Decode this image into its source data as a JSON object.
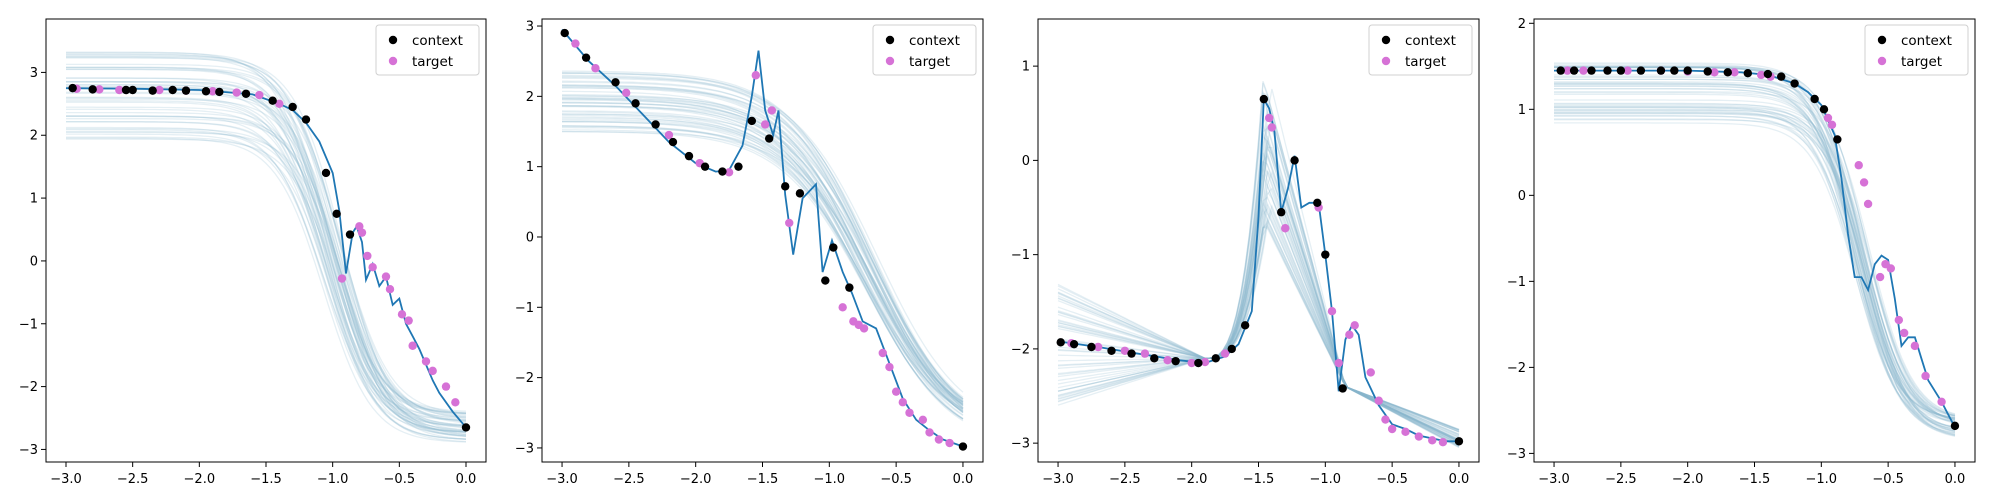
{
  "figure": {
    "legend_labels": {
      "context": "context",
      "target": "target"
    },
    "colors": {
      "context": "#000000",
      "target": "#d672d6",
      "mean": "#1f77b4",
      "samples": "#8ab8cc"
    }
  },
  "chart_data": [
    {
      "type": "scatter",
      "title": "",
      "xlabel": "",
      "ylabel": "",
      "xlim": [
        -3.15,
        0.15
      ],
      "ylim": [
        -3.2,
        3.85
      ],
      "xticks": [
        -3.0,
        -2.5,
        -2.0,
        -1.5,
        -1.0,
        -0.5,
        0.0
      ],
      "xtick_labels": [
        "−3.0",
        "−2.5",
        "−2.0",
        "−1.5",
        "−1.0",
        "−0.5",
        "0.0"
      ],
      "yticks": [
        -3,
        -2,
        -1,
        0,
        1,
        2,
        3
      ],
      "ytick_labels": [
        "−3",
        "−2",
        "−1",
        "0",
        "1",
        "2",
        "3"
      ],
      "legend": "top-right",
      "grid": false,
      "mean_line": {
        "x": [
          -3.0,
          -2.5,
          -2.0,
          -1.6,
          -1.4,
          -1.3,
          -1.2,
          -1.1,
          -1.0,
          -0.95,
          -0.9,
          -0.85,
          -0.82,
          -0.78,
          -0.75,
          -0.7,
          -0.65,
          -0.6,
          -0.55,
          -0.5,
          -0.45,
          -0.4,
          -0.35,
          -0.3,
          -0.25,
          -0.2,
          -0.1,
          0.0
        ],
        "y": [
          2.75,
          2.74,
          2.72,
          2.65,
          2.5,
          2.4,
          2.2,
          1.9,
          1.4,
          0.8,
          -0.2,
          0.45,
          0.55,
          0.3,
          -0.3,
          -0.05,
          -0.4,
          -0.25,
          -0.7,
          -0.6,
          -1.0,
          -1.2,
          -1.4,
          -1.65,
          -1.9,
          -2.1,
          -2.4,
          -2.65
        ]
      },
      "samples": {
        "count": 50,
        "plateau_range": [
          1.9,
          3.4
        ],
        "mid": -1.0,
        "width": 0.18,
        "end_range": [
          -2.9,
          -2.4
        ]
      },
      "context": {
        "x": [
          -2.95,
          -2.8,
          -2.55,
          -2.5,
          -2.35,
          -2.2,
          -2.1,
          -1.95,
          -1.85,
          -1.65,
          -1.45,
          -1.3,
          -1.2,
          -1.05,
          -0.97,
          -0.87,
          0.0
        ],
        "y": [
          2.75,
          2.73,
          2.72,
          2.72,
          2.71,
          2.72,
          2.71,
          2.7,
          2.69,
          2.66,
          2.55,
          2.45,
          2.25,
          1.4,
          0.75,
          0.42,
          -2.65
        ]
      },
      "target": {
        "x": [
          -2.92,
          -2.75,
          -2.6,
          -2.3,
          -2.1,
          -1.9,
          -1.72,
          -1.55,
          -1.4,
          -0.93,
          -0.8,
          -0.78,
          -0.74,
          -0.7,
          -0.6,
          -0.57,
          -0.48,
          -0.43,
          -0.4,
          -0.3,
          -0.25,
          -0.15,
          -0.08
        ],
        "y": [
          2.74,
          2.73,
          2.72,
          2.72,
          2.71,
          2.7,
          2.68,
          2.64,
          2.5,
          -0.28,
          0.55,
          0.45,
          0.08,
          -0.1,
          -0.25,
          -0.45,
          -0.85,
          -0.95,
          -1.35,
          -1.6,
          -1.75,
          -2.0,
          -2.25
        ]
      }
    },
    {
      "type": "scatter",
      "title": "",
      "xlabel": "",
      "ylabel": "",
      "xlim": [
        -3.15,
        0.15
      ],
      "ylim": [
        -3.2,
        3.1
      ],
      "xticks": [
        -3.0,
        -2.5,
        -2.0,
        -1.5,
        -1.0,
        -0.5,
        0.0
      ],
      "xtick_labels": [
        "−3.0",
        "−2.5",
        "−2.0",
        "−1.5",
        "−1.0",
        "−0.5",
        "0.0"
      ],
      "yticks": [
        -3,
        -2,
        -1,
        0,
        1,
        2,
        3
      ],
      "ytick_labels": [
        "−3",
        "−2",
        "−1",
        "0",
        "1",
        "2",
        "3"
      ],
      "legend": "top-right",
      "grid": false,
      "mean_line": {
        "x": [
          -3.0,
          -2.8,
          -2.6,
          -2.4,
          -2.2,
          -2.0,
          -1.85,
          -1.75,
          -1.65,
          -1.58,
          -1.53,
          -1.48,
          -1.42,
          -1.38,
          -1.33,
          -1.27,
          -1.2,
          -1.1,
          -1.05,
          -0.98,
          -0.9,
          -0.83,
          -0.75,
          -0.65,
          -0.55,
          -0.45,
          -0.35,
          -0.25,
          -0.15,
          0.0
        ],
        "y": [
          2.95,
          2.5,
          2.15,
          1.75,
          1.35,
          1.05,
          0.93,
          0.95,
          1.3,
          2.0,
          2.65,
          1.8,
          1.45,
          1.8,
          0.6,
          -0.25,
          0.55,
          0.75,
          -0.5,
          -0.05,
          -0.5,
          -0.8,
          -1.2,
          -1.3,
          -1.8,
          -2.3,
          -2.6,
          -2.75,
          -2.88,
          -2.98
        ]
      },
      "samples": {
        "count": 50,
        "plateau_range": [
          1.5,
          2.4
        ],
        "mid": -0.7,
        "width": 0.32,
        "end_range": [
          -3.05,
          -2.75
        ]
      },
      "context": {
        "x": [
          -2.98,
          -2.82,
          -2.6,
          -2.45,
          -2.3,
          -2.17,
          -2.05,
          -1.93,
          -1.8,
          -1.68,
          -1.58,
          -1.45,
          -1.33,
          -1.22,
          -1.03,
          -0.97,
          -0.85,
          0.0
        ],
        "y": [
          2.9,
          2.55,
          2.2,
          1.9,
          1.6,
          1.35,
          1.15,
          1.0,
          0.93,
          1.0,
          1.65,
          1.4,
          0.72,
          0.62,
          -0.62,
          -0.15,
          -0.72,
          -2.98
        ]
      },
      "target": {
        "x": [
          -2.9,
          -2.75,
          -2.52,
          -2.2,
          -1.97,
          -1.75,
          -1.55,
          -1.48,
          -1.43,
          -1.3,
          -0.9,
          -0.82,
          -0.78,
          -0.74,
          -0.6,
          -0.55,
          -0.5,
          -0.45,
          -0.4,
          -0.3,
          -0.25,
          -0.18,
          -0.1
        ],
        "y": [
          2.75,
          2.4,
          2.05,
          1.45,
          1.05,
          0.92,
          2.3,
          1.6,
          1.8,
          0.2,
          -1.0,
          -1.2,
          -1.25,
          -1.3,
          -1.65,
          -1.85,
          -2.2,
          -2.35,
          -2.5,
          -2.6,
          -2.78,
          -2.88,
          -2.93
        ]
      }
    },
    {
      "type": "scatter",
      "title": "",
      "xlabel": "",
      "ylabel": "",
      "xlim": [
        -3.15,
        0.15
      ],
      "ylim": [
        -3.2,
        1.5
      ],
      "xticks": [
        -3.0,
        -2.5,
        -2.0,
        -1.5,
        -1.0,
        -0.5,
        0.0
      ],
      "xtick_labels": [
        "−3.0",
        "−2.5",
        "−2.0",
        "−1.5",
        "−1.0",
        "−0.5",
        "0.0"
      ],
      "yticks": [
        -3,
        -2,
        -1,
        0,
        1
      ],
      "ytick_labels": [
        "−3",
        "−2",
        "−1",
        "0",
        "1"
      ],
      "legend": "top-right",
      "grid": false,
      "mean_line": {
        "x": [
          -3.0,
          -2.7,
          -2.4,
          -2.1,
          -1.9,
          -1.75,
          -1.65,
          -1.55,
          -1.5,
          -1.46,
          -1.42,
          -1.38,
          -1.33,
          -1.28,
          -1.23,
          -1.18,
          -1.12,
          -1.05,
          -1.0,
          -0.95,
          -0.9,
          -0.85,
          -0.8,
          -0.75,
          -0.7,
          -0.6,
          -0.5,
          -0.4,
          -0.3,
          -0.2,
          -0.1,
          0.0
        ],
        "y": [
          -1.92,
          -1.98,
          -2.05,
          -2.12,
          -2.15,
          -2.08,
          -1.95,
          -1.6,
          -0.6,
          0.65,
          0.55,
          0.3,
          -0.55,
          -0.3,
          0.05,
          -0.5,
          -0.45,
          -0.45,
          -1.0,
          -1.6,
          -2.45,
          -1.9,
          -1.75,
          -1.85,
          -2.3,
          -2.6,
          -2.8,
          -2.85,
          -2.92,
          -2.95,
          -2.98,
          -2.98
        ]
      },
      "samples": {
        "shape": "peak",
        "count": 50,
        "peak_x": -1.45,
        "base_start_range": [
          -2.6,
          -1.3
        ],
        "peak_range": [
          -0.7,
          0.9
        ],
        "end_range": [
          -3.05,
          -2.85
        ]
      },
      "context": {
        "x": [
          -2.98,
          -2.88,
          -2.75,
          -2.6,
          -2.45,
          -2.28,
          -2.12,
          -1.95,
          -1.82,
          -1.7,
          -1.6,
          -1.46,
          -1.33,
          -1.23,
          -1.06,
          -1.0,
          -0.87,
          0.0
        ],
        "y": [
          -1.93,
          -1.95,
          -1.98,
          -2.02,
          -2.05,
          -2.1,
          -2.13,
          -2.15,
          -2.1,
          -2.0,
          -1.75,
          0.65,
          -0.55,
          0.0,
          -0.45,
          -1.0,
          -2.42,
          -2.98
        ]
      },
      "target": {
        "x": [
          -2.9,
          -2.7,
          -2.5,
          -2.35,
          -2.18,
          -2.0,
          -1.9,
          -1.75,
          -1.42,
          -1.4,
          -1.3,
          -1.05,
          -0.95,
          -0.9,
          -0.82,
          -0.78,
          -0.66,
          -0.6,
          -0.55,
          -0.5,
          -0.4,
          -0.3,
          -0.2,
          -0.12
        ],
        "y": [
          -1.94,
          -1.98,
          -2.02,
          -2.05,
          -2.12,
          -2.15,
          -2.14,
          -2.05,
          0.45,
          0.35,
          -0.72,
          -0.5,
          -1.6,
          -2.15,
          -1.85,
          -1.75,
          -2.25,
          -2.55,
          -2.75,
          -2.85,
          -2.88,
          -2.93,
          -2.97,
          -2.99
        ]
      }
    },
    {
      "type": "scatter",
      "title": "",
      "xlabel": "",
      "ylabel": "",
      "xlim": [
        -3.15,
        0.15
      ],
      "ylim": [
        -3.1,
        2.05
      ],
      "xticks": [
        -3.0,
        -2.5,
        -2.0,
        -1.5,
        -1.0,
        -0.5,
        0.0
      ],
      "xtick_labels": [
        "−3.0",
        "−2.5",
        "−2.0",
        "−1.5",
        "−1.0",
        "−0.5",
        "0.0"
      ],
      "yticks": [
        -3,
        -2,
        -1,
        0,
        1,
        2
      ],
      "ytick_labels": [
        "−3",
        "−2",
        "−1",
        "0",
        "1",
        "2"
      ],
      "legend": "top-right",
      "grid": false,
      "mean_line": {
        "x": [
          -3.0,
          -2.5,
          -2.0,
          -1.6,
          -1.4,
          -1.2,
          -1.1,
          -1.0,
          -0.9,
          -0.85,
          -0.8,
          -0.75,
          -0.7,
          -0.65,
          -0.6,
          -0.55,
          -0.5,
          -0.45,
          -0.4,
          -0.35,
          -0.3,
          -0.25,
          -0.2,
          -0.1,
          0.0
        ],
        "y": [
          1.45,
          1.45,
          1.45,
          1.43,
          1.4,
          1.3,
          1.2,
          1.05,
          0.7,
          0.2,
          -0.45,
          -0.95,
          -0.95,
          -1.1,
          -0.8,
          -0.7,
          -0.75,
          -1.2,
          -1.75,
          -1.65,
          -1.65,
          -1.9,
          -2.15,
          -2.4,
          -2.7
        ]
      },
      "samples": {
        "count": 50,
        "plateau_range": [
          0.8,
          1.55
        ],
        "mid": -0.7,
        "width": 0.16,
        "end_range": [
          -2.85,
          -2.6
        ]
      },
      "context": {
        "x": [
          -2.95,
          -2.85,
          -2.72,
          -2.6,
          -2.5,
          -2.35,
          -2.2,
          -2.1,
          -2.0,
          -1.85,
          -1.7,
          -1.55,
          -1.4,
          -1.3,
          -1.2,
          -1.05,
          -0.98,
          -0.88,
          0.0
        ],
        "y": [
          1.45,
          1.45,
          1.45,
          1.45,
          1.45,
          1.45,
          1.45,
          1.45,
          1.45,
          1.44,
          1.43,
          1.42,
          1.41,
          1.38,
          1.3,
          1.12,
          1.0,
          0.65,
          -2.68
        ]
      },
      "target": {
        "x": [
          -2.9,
          -2.78,
          -2.45,
          -2.2,
          -2.0,
          -1.8,
          -1.65,
          -1.45,
          -1.38,
          -0.95,
          -0.92,
          -0.72,
          -0.68,
          -0.65,
          -0.56,
          -0.52,
          -0.48,
          -0.42,
          -0.38,
          -0.3,
          -0.22,
          -0.1
        ],
        "y": [
          1.45,
          1.45,
          1.45,
          1.45,
          1.44,
          1.43,
          1.43,
          1.4,
          1.38,
          0.9,
          0.82,
          0.35,
          0.15,
          -0.1,
          -0.95,
          -0.8,
          -0.85,
          -1.45,
          -1.6,
          -1.75,
          -2.1,
          -2.4
        ]
      }
    }
  ]
}
